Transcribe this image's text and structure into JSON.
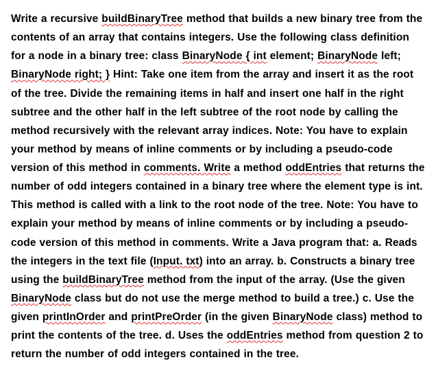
{
  "doc": {
    "s00": "Write a recursive ",
    "u00": "buildBinaryTree",
    "s01": " method that builds a new binary tree from the contents of an array that contains integers. Use the following class definition for a node in a binary tree: class ",
    "u01": "BinaryNode { int",
    "s02": " element; ",
    "u02": "BinaryNode",
    "s03": " left; ",
    "u03": "BinaryNode right; }",
    "s04": " Hint: Take one item from the array and insert it as the root of the tree. Divide the remaining items in half and insert one half in the right subtree and the other half in the left subtree of the root node by calling the method recursively with the relevant array indices. Note: You have to explain your method by means of inline comments or by including a pseudo-code version of this method in ",
    "u04": "comments. Write",
    "s05": " a method ",
    "u05": "oddEntries",
    "s06": " that returns the number of odd integers contained in a binary tree where the element type is int. This method is called with a link to the root node of the tree. Note: You have to explain your method by means of inline comments or by including a pseudo-code version of this method in comments. Write a Java program that: a. Reads the integers in the text file (",
    "u06": "Input. txt",
    "s07": ") into an array. b.  Constructs a binary tree using the ",
    "u07": "buildBinaryTree",
    "s08": " method from the input of the array. (Use the given ",
    "u08": "BinaryNode",
    "s09": " class but do not use the merge method to build a tree.) c. Use the given ",
    "u09": "printInOrder",
    "s10": " and ",
    "u10": "printPreOrder",
    "s11": " (in the given ",
    "u11": "BinaryNode",
    "s12": " class) method to print the contents of the tree. d. Uses the ",
    "u12": "oddEntries",
    "s13": " method from question 2 to return the number of odd integers contained in the tree."
  }
}
